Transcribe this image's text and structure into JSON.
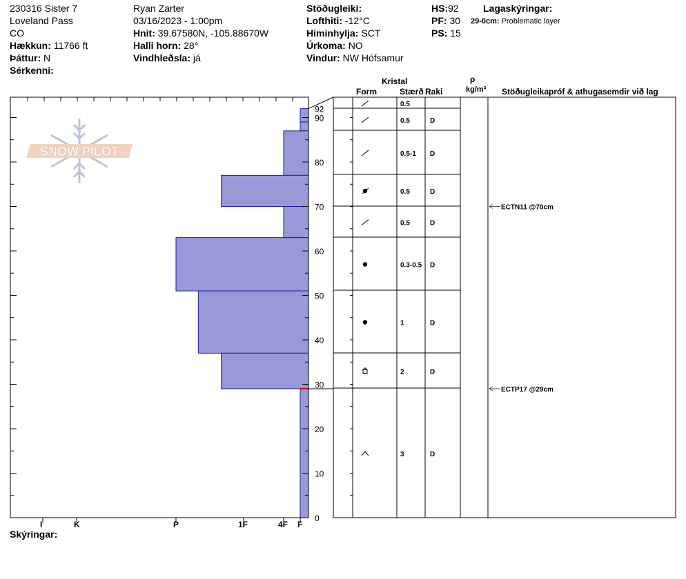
{
  "header": {
    "col1": {
      "line1": "230316 Sister 7",
      "line2": "Loveland Pass",
      "line3": "CO",
      "elev_label": "Hækkun:",
      "elev_value": "11766 ft",
      "aspect_label": "Þáttur:",
      "aspect_value": "N",
      "features_label": "Sérkenni:"
    },
    "col2": {
      "observer": "Ryan Zarter",
      "datetime": "03/16/2023 - 1:00pm",
      "coords_label": "Hnit:",
      "coords_value": "39.67580N, -105.88670W",
      "slope_label": "Halli horn:",
      "slope_value": "28°",
      "wind_load_label": "Vindhleðsla:",
      "wind_load_value": "já"
    },
    "col3": {
      "stability_label": "Stöðugleiki:",
      "airtemp_label": "Lofthiti:",
      "airtemp_value": "-12°C",
      "sky_label": "Himinhylja:",
      "sky_value": "SCT",
      "precip_label": "Úrkoma:",
      "precip_value": "NO",
      "wind_label": "Vindur:",
      "wind_value": "NW Hófsamur"
    },
    "col4": {
      "hs_label": "HS:",
      "hs_value": "92",
      "pf_label": "PF:",
      "pf_value": "30",
      "ps_label": "PS:",
      "ps_value": "15"
    },
    "legend": {
      "title": "Lagaskýringar:",
      "item_range": "29-0cm:",
      "item_text": "Problematic layer"
    }
  },
  "logo_text": "SNOW PILOT",
  "notes_label": "Skýringar:",
  "colors": {
    "bar_fill": "#9999d8",
    "bar_stroke": "#1a1aa0",
    "problem_line": "#cc0000",
    "arrow": "#555555"
  },
  "table_headers": {
    "crystal": "Kristal",
    "form": "Form",
    "size": "Stærð",
    "moisture": "Raki",
    "rho": "ρ",
    "density_unit": "kg/m³",
    "tests": "Stöðugleikapróf & athugasemdir við lag"
  },
  "chart_data": {
    "type": "bar",
    "orientation": "horizontal",
    "ylabel": "",
    "xlabel": "",
    "ylim": [
      0,
      95
    ],
    "y_ticks": [
      0,
      10,
      20,
      30,
      40,
      50,
      60,
      70,
      80,
      90,
      92
    ],
    "hardness_scale": [
      "F",
      "4F",
      "1F",
      "P",
      "K",
      "I"
    ],
    "hardness_index": {
      "F": 1,
      "4F": 2,
      "1F": 3,
      "1F+": 3.33,
      "P-": 3.67,
      "P": 4,
      "K": 5,
      "I": 6
    },
    "layers": [
      {
        "top": 92,
        "bottom": 89,
        "hardness": "F",
        "form": "decomposing",
        "size": "0.5",
        "moisture": ""
      },
      {
        "top": 89,
        "bottom": 87,
        "hardness": "F",
        "form": "decomposing",
        "size": "0.5",
        "moisture": "D"
      },
      {
        "top": 87,
        "bottom": 77,
        "hardness": "4F",
        "form": "decomposing",
        "size": "0.5-1",
        "moisture": "D"
      },
      {
        "top": 77,
        "bottom": 70,
        "hardness": "1F+",
        "form": "rounding-faceted",
        "size": "0.5",
        "moisture": "D"
      },
      {
        "top": 70,
        "bottom": 63,
        "hardness": "4F",
        "form": "decomposing",
        "size": "0.5",
        "moisture": "D"
      },
      {
        "top": 63,
        "bottom": 51,
        "hardness": "P",
        "form": "rounded",
        "size": "0.3-0.5",
        "moisture": "D"
      },
      {
        "top": 51,
        "bottom": 37,
        "hardness": "P-",
        "form": "rounded",
        "size": "1",
        "moisture": "D"
      },
      {
        "top": 37,
        "bottom": 29,
        "hardness": "1F+",
        "form": "faceted",
        "size": "2",
        "moisture": "D"
      },
      {
        "top": 29,
        "bottom": 0,
        "hardness": "F",
        "form": "depth-hoar",
        "size": "3",
        "moisture": "D"
      }
    ],
    "tests": [
      {
        "depth": 70,
        "label": "ECTN11 @70cm"
      },
      {
        "depth": 29,
        "label": "ECTP17 @29cm"
      }
    ],
    "problem_layer_depth": 29
  }
}
